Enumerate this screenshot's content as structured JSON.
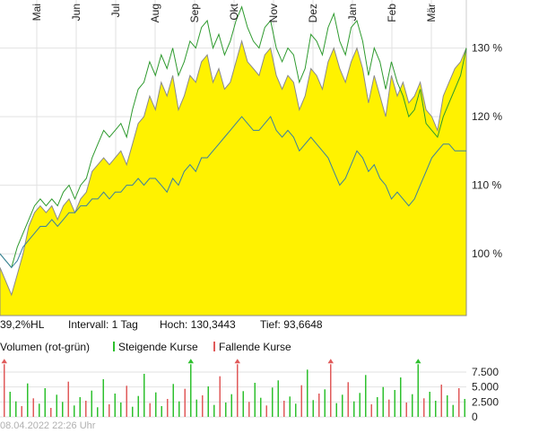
{
  "chart_data": {
    "type": "area",
    "months": [
      "Mai",
      "Jun",
      "Jul",
      "Aug",
      "Sep",
      "Okt",
      "Nov",
      "Dez",
      "Jan",
      "Feb",
      "Mär"
    ],
    "y_ticks": [
      "130 %",
      "120 %",
      "110 %",
      "100 %"
    ],
    "y_tick_values": [
      130,
      120,
      110,
      100
    ],
    "ylim": [
      91,
      137
    ],
    "grid": true,
    "colors": {
      "area": "#fff200",
      "area_edge": "#8a8a8a",
      "series_green": "#2e9a2e",
      "series_blue": "#3a7fa0",
      "grid": "#e2e2e2",
      "up": "#2ec02e",
      "down": "#e05a5a"
    },
    "series": [
      {
        "values": [
          98,
          96,
          94,
          97,
          100,
          104,
          106,
          107,
          106,
          107,
          105,
          107,
          108,
          106,
          108,
          109,
          112,
          113,
          114,
          113,
          114,
          115,
          113,
          116,
          119,
          120,
          123,
          121,
          125,
          123,
          126,
          121,
          123,
          126,
          125,
          128,
          129,
          125,
          127,
          124,
          125,
          128,
          131,
          128,
          127,
          126,
          129,
          130,
          126,
          124,
          126,
          125,
          121,
          123,
          127,
          126,
          124,
          128,
          130,
          127,
          125,
          128,
          130,
          127,
          122,
          126,
          123,
          120,
          126,
          123,
          125,
          122,
          123,
          125,
          121,
          120,
          118,
          123,
          125,
          127,
          128,
          130
        ]
      },
      {
        "values": [
          100,
          99,
          98,
          101,
          103,
          105,
          107,
          108,
          107,
          108,
          107,
          109,
          110,
          108,
          110,
          111,
          114,
          116,
          118,
          117,
          118,
          119,
          117,
          121,
          124,
          125,
          128,
          126,
          129,
          127,
          130,
          126,
          128,
          131,
          130,
          133,
          134,
          130,
          132,
          129,
          131,
          134,
          136,
          133,
          131,
          130,
          133,
          134,
          130,
          128,
          130,
          129,
          125,
          127,
          132,
          131,
          129,
          133,
          135,
          131,
          129,
          133,
          134,
          131,
          126,
          130,
          128,
          124,
          128,
          125,
          123,
          120,
          121,
          124,
          119,
          118,
          117,
          120,
          122,
          124,
          126,
          130
        ]
      },
      {
        "values": [
          100,
          99,
          98,
          99,
          101,
          102,
          103,
          104,
          104,
          105,
          104,
          105,
          106,
          106,
          107,
          107,
          108,
          108,
          109,
          108,
          109,
          109,
          110,
          110,
          111,
          110,
          111,
          111,
          110,
          109,
          111,
          110,
          112,
          113,
          112,
          114,
          114,
          115,
          116,
          117,
          118,
          119,
          120,
          119,
          118,
          118,
          119,
          120,
          118,
          117,
          118,
          117,
          115,
          116,
          117,
          116,
          115,
          114,
          112,
          110,
          111,
          113,
          115,
          114,
          112,
          113,
          111,
          110,
          108,
          109,
          108,
          107,
          108,
          110,
          112,
          114,
          115,
          116,
          116,
          115,
          115,
          115
        ]
      }
    ],
    "volume": {
      "ticks": [
        "7.500",
        "5.000",
        "2.500",
        "0"
      ],
      "tick_values": [
        7500,
        5000,
        2500,
        0
      ],
      "ylim": [
        0,
        9000
      ],
      "bars": [
        {
          "v": 8800,
          "up": false
        },
        {
          "v": 4200,
          "up": true
        },
        {
          "v": 2600,
          "up": true
        },
        {
          "v": 1800,
          "up": false
        },
        {
          "v": 5600,
          "up": true
        },
        {
          "v": 3100,
          "up": false
        },
        {
          "v": 2200,
          "up": true
        },
        {
          "v": 4800,
          "up": true
        },
        {
          "v": 1500,
          "up": false
        },
        {
          "v": 3700,
          "up": true
        },
        {
          "v": 2500,
          "up": true
        },
        {
          "v": 5900,
          "up": false
        },
        {
          "v": 1900,
          "up": true
        },
        {
          "v": 3300,
          "up": true
        },
        {
          "v": 2700,
          "up": false
        },
        {
          "v": 4400,
          "up": true
        },
        {
          "v": 1600,
          "up": true
        },
        {
          "v": 6300,
          "up": true
        },
        {
          "v": 2100,
          "up": false
        },
        {
          "v": 3900,
          "up": true
        },
        {
          "v": 2400,
          "up": true
        },
        {
          "v": 5200,
          "up": false
        },
        {
          "v": 1700,
          "up": true
        },
        {
          "v": 3500,
          "up": true
        },
        {
          "v": 7200,
          "up": true
        },
        {
          "v": 2300,
          "up": false
        },
        {
          "v": 4100,
          "up": true
        },
        {
          "v": 1800,
          "up": true
        },
        {
          "v": 3000,
          "up": false
        },
        {
          "v": 5500,
          "up": true
        },
        {
          "v": 2600,
          "up": true
        },
        {
          "v": 4700,
          "up": false
        },
        {
          "v": 8800,
          "up": true
        },
        {
          "v": 2900,
          "up": true
        },
        {
          "v": 3600,
          "up": false
        },
        {
          "v": 5100,
          "up": true
        },
        {
          "v": 2000,
          "up": true
        },
        {
          "v": 6800,
          "up": false
        },
        {
          "v": 2400,
          "up": true
        },
        {
          "v": 3800,
          "up": true
        },
        {
          "v": 8800,
          "up": false
        },
        {
          "v": 4300,
          "up": true
        },
        {
          "v": 2500,
          "up": false
        },
        {
          "v": 5700,
          "up": true
        },
        {
          "v": 3200,
          "up": true
        },
        {
          "v": 1900,
          "up": false
        },
        {
          "v": 4900,
          "up": true
        },
        {
          "v": 6100,
          "up": true
        },
        {
          "v": 2700,
          "up": false
        },
        {
          "v": 3400,
          "up": true
        },
        {
          "v": 2200,
          "up": true
        },
        {
          "v": 5300,
          "up": false
        },
        {
          "v": 7900,
          "up": true
        },
        {
          "v": 2800,
          "up": true
        },
        {
          "v": 3900,
          "up": false
        },
        {
          "v": 4600,
          "up": true
        },
        {
          "v": 8800,
          "up": false
        },
        {
          "v": 2300,
          "up": true
        },
        {
          "v": 3700,
          "up": true
        },
        {
          "v": 5800,
          "up": false
        },
        {
          "v": 2600,
          "up": true
        },
        {
          "v": 4000,
          "up": true
        },
        {
          "v": 7000,
          "up": true
        },
        {
          "v": 2100,
          "up": false
        },
        {
          "v": 3300,
          "up": true
        },
        {
          "v": 5000,
          "up": true
        },
        {
          "v": 2900,
          "up": false
        },
        {
          "v": 4500,
          "up": true
        },
        {
          "v": 6600,
          "up": true
        },
        {
          "v": 2400,
          "up": false
        },
        {
          "v": 3800,
          "up": true
        },
        {
          "v": 8800,
          "up": true
        },
        {
          "v": 3100,
          "up": false
        },
        {
          "v": 4200,
          "up": true
        },
        {
          "v": 2700,
          "up": true
        },
        {
          "v": 5400,
          "up": false
        },
        {
          "v": 3600,
          "up": true
        },
        {
          "v": 2000,
          "up": true
        },
        {
          "v": 4800,
          "up": false
        },
        {
          "v": 3000,
          "up": true
        }
      ]
    }
  },
  "stats": {
    "range": "39,2%HL",
    "interval": "Intervall: 1 Tag",
    "high": "Hoch: 130,3443",
    "low": "Tief: 93,6648"
  },
  "legend": {
    "volume": "Volumen (rot-grün)",
    "rising": "Steigende Kurse",
    "falling": "Fallende Kurse"
  },
  "timestamp": "08.04.2022 22:26 Uhr"
}
